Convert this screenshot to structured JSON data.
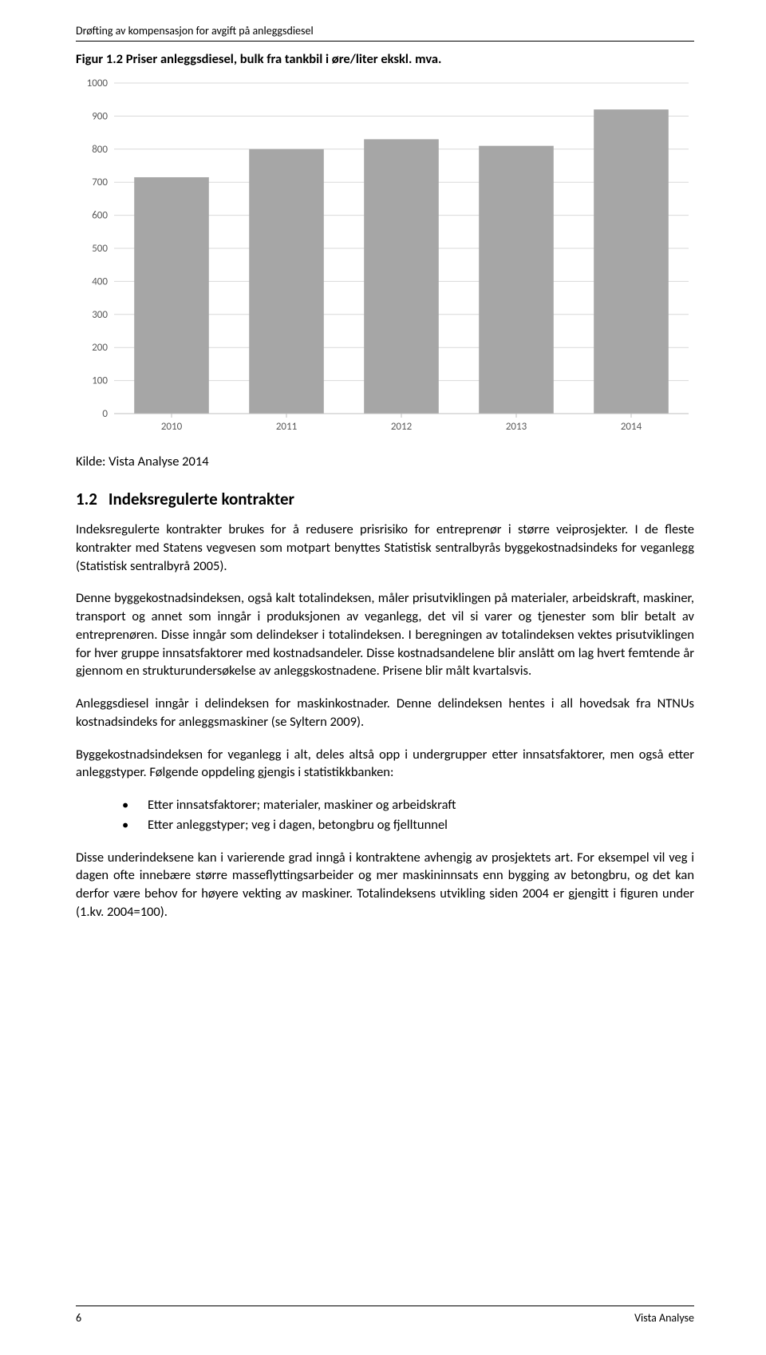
{
  "header": {
    "running": "Drøfting av kompensasjon for avgift på anleggsdiesel"
  },
  "figure": {
    "caption": "Figur 1.2 Priser anleggsdiesel, bulk fra tankbil i øre/liter ekskl. mva."
  },
  "chart": {
    "type": "bar",
    "categories": [
      "2010",
      "2011",
      "2012",
      "2013",
      "2014"
    ],
    "values": [
      715,
      800,
      830,
      810,
      920
    ],
    "ylim": [
      0,
      1000
    ],
    "ytick_step": 100,
    "yticks": [
      0,
      100,
      200,
      300,
      400,
      500,
      600,
      700,
      800,
      900,
      1000
    ],
    "bar_color": "#a6a6a6",
    "axis_color": "#d9d9d9",
    "tick_label_color": "#595959",
    "axis_line_color": "#bfbfbf",
    "background_color": "#ffffff",
    "bar_gap_ratio": 0.35,
    "label_fontsize": 13
  },
  "source": {
    "text": "Kilde: Vista Analyse 2014"
  },
  "section": {
    "number": "1.2",
    "title": "Indeksregulerte kontrakter",
    "p1": "Indeksregulerte kontrakter brukes for å redusere prisrisiko for entreprenør i større veiprosjekter. I de fleste kontrakter med Statens vegvesen som motpart benyttes Statistisk sentralbyrås byggekostnadsindeks for veganlegg (Statistisk sentralbyrå 2005).",
    "p2": "Denne byggekostnadsindeksen, også kalt totalindeksen, måler prisutviklingen på materialer, arbeidskraft, maskiner, transport og annet som inngår i produksjonen av veganlegg, det vil si varer og tjenester som blir betalt av entreprenøren. Disse inngår som delindekser i totalindeksen. I beregningen av totalindeksen vektes prisutviklingen for hver gruppe innsatsfaktorer med kostnadsandeler. Disse kostnadsandelene blir anslått om lag hvert femtende år gjennom en strukturundersøkelse av anleggskostnadene. Prisene blir målt kvartalsvis.",
    "p3": "Anleggsdiesel inngår i delindeksen for maskinkostnader. Denne delindeksen hentes i all hovedsak fra NTNUs kostnadsindeks for anleggsmaskiner (se Syltern 2009).",
    "p4": "Byggekostnadsindeksen for veganlegg i alt, deles altså opp i undergrupper etter innsatsfaktorer, men også etter anleggstyper. Følgende oppdeling gjengis i statistikkbanken:",
    "bullets": [
      "Etter innsatsfaktorer; materialer, maskiner og arbeidskraft",
      "Etter anleggstyper; veg i dagen, betongbru og fjelltunnel"
    ],
    "p5": "Disse underindeksene kan i varierende grad inngå i kontraktene avhengig av prosjektets art. For eksempel vil veg i dagen ofte innebære større masseflyttingsarbeider og mer maskininnsats enn bygging av betongbru, og det kan derfor være behov for høyere vekting av maskiner. Totalindeksens utvikling siden 2004 er gjengitt i figuren under (1.kv. 2004=100)."
  },
  "footer": {
    "page": "6",
    "org": "Vista Analyse"
  }
}
